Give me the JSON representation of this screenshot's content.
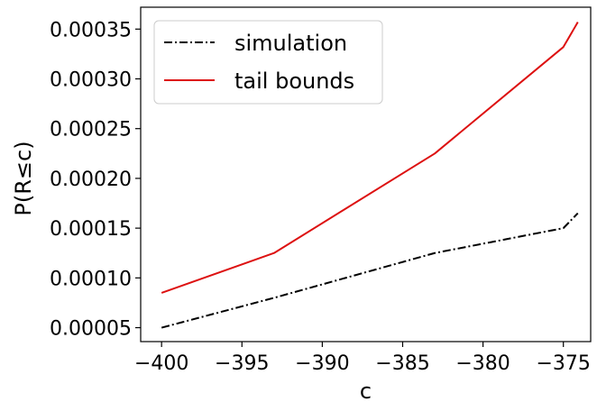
{
  "chart_data": {
    "type": "line",
    "title": "",
    "xlabel": "c",
    "ylabel": "P(R≤c)",
    "xlim": [
      -401.3,
      -373.3
    ],
    "ylim": [
      3.6e-05,
      0.000372
    ],
    "xticks": [
      {
        "value": -400,
        "label": "−400"
      },
      {
        "value": -395,
        "label": "−395"
      },
      {
        "value": -390,
        "label": "−390"
      },
      {
        "value": -385,
        "label": "−385"
      },
      {
        "value": -380,
        "label": "−380"
      },
      {
        "value": -375,
        "label": "−375"
      }
    ],
    "yticks": [
      {
        "value": 5e-05,
        "label": "0.00005"
      },
      {
        "value": 0.0001,
        "label": "0.00010"
      },
      {
        "value": 0.00015,
        "label": "0.00015"
      },
      {
        "value": 0.0002,
        "label": "0.00020"
      },
      {
        "value": 0.00025,
        "label": "0.00025"
      },
      {
        "value": 0.0003,
        "label": "0.00030"
      },
      {
        "value": 0.00035,
        "label": "0.00035"
      }
    ],
    "grid": false,
    "legend_position": "top-left",
    "series": [
      {
        "name": "simulation",
        "color": "#000000",
        "style": "dashdot",
        "x": [
          -400,
          -393,
          -383,
          -375,
          -374.1
        ],
        "y": [
          5e-05,
          8e-05,
          0.000125,
          0.00015,
          0.000165
        ]
      },
      {
        "name": "tail bounds",
        "color": "#dd1111",
        "style": "solid",
        "x": [
          -400,
          -393,
          -383,
          -375,
          -374.1
        ],
        "y": [
          8.5e-05,
          0.000125,
          0.000225,
          0.000332,
          0.000357
        ]
      }
    ]
  }
}
